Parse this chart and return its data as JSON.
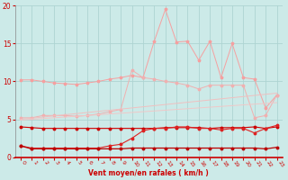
{
  "x": [
    0,
    1,
    2,
    3,
    4,
    5,
    6,
    7,
    8,
    9,
    10,
    11,
    12,
    13,
    14,
    15,
    16,
    17,
    18,
    19,
    20,
    21,
    22,
    23
  ],
  "line1_pink_spike": [
    10.2,
    10.2,
    10.0,
    9.8,
    9.7,
    9.6,
    9.8,
    10.0,
    10.3,
    10.5,
    10.8,
    10.5,
    15.3,
    19.5,
    15.2,
    15.3,
    12.8,
    15.3,
    10.5,
    15.0,
    10.5,
    10.3,
    6.5,
    8.2
  ],
  "line2_pink_curve": [
    5.2,
    5.2,
    5.5,
    5.5,
    5.5,
    5.4,
    5.5,
    5.7,
    6.0,
    6.3,
    11.5,
    10.5,
    10.3,
    10.0,
    9.8,
    9.5,
    9.0,
    9.5,
    9.5,
    9.5,
    9.5,
    5.2,
    5.5,
    8.2
  ],
  "line3_pink_linear_hi": [
    5.0,
    5.15,
    5.3,
    5.45,
    5.6,
    5.75,
    5.9,
    6.05,
    6.2,
    6.35,
    6.5,
    6.65,
    6.8,
    6.95,
    7.1,
    7.25,
    7.4,
    7.55,
    7.7,
    7.85,
    8.0,
    8.15,
    8.3,
    8.45
  ],
  "line4_pink_linear_lo": [
    4.9,
    5.0,
    5.1,
    5.2,
    5.3,
    5.4,
    5.5,
    5.6,
    5.7,
    5.8,
    5.9,
    6.0,
    6.1,
    6.2,
    6.3,
    6.4,
    6.5,
    6.6,
    6.7,
    6.8,
    6.9,
    7.0,
    7.1,
    7.2
  ],
  "line5_dark_red_flat": [
    4.0,
    3.9,
    3.8,
    3.8,
    3.8,
    3.8,
    3.8,
    3.8,
    3.8,
    3.8,
    3.8,
    3.8,
    3.8,
    3.9,
    3.9,
    3.9,
    3.9,
    3.8,
    3.9,
    3.9,
    3.9,
    4.0,
    3.8,
    4.0
  ],
  "line6_red_mid": [
    1.5,
    1.2,
    1.2,
    1.2,
    1.2,
    1.2,
    1.2,
    1.2,
    1.5,
    1.7,
    2.5,
    3.5,
    3.8,
    3.8,
    4.0,
    4.0,
    3.8,
    3.8,
    3.6,
    3.8,
    3.8,
    3.2,
    3.8,
    4.2
  ],
  "line7_red_low": [
    1.5,
    1.1,
    1.1,
    1.1,
    1.1,
    1.1,
    1.1,
    1.1,
    1.1,
    1.1,
    1.2,
    1.2,
    1.2,
    1.2,
    1.2,
    1.2,
    1.2,
    1.2,
    1.2,
    1.2,
    1.2,
    1.2,
    1.1,
    1.3
  ],
  "bg_color": "#cceae8",
  "grid_color": "#aed4d2",
  "pink_color1": "#f5a0a0",
  "pink_color2": "#f0b0b0",
  "pink_color3": "#f0c0c0",
  "pink_color4": "#f0c8c8",
  "red_color1": "#cc0000",
  "red_color2": "#dd2222",
  "red_color3": "#bb0000",
  "xlabel": "Vent moyen/en rafales ( km/h )",
  "xlim": [
    -0.5,
    23.5
  ],
  "ylim": [
    0,
    20
  ],
  "yticks": [
    0,
    5,
    10,
    15,
    20
  ],
  "xticks": [
    0,
    1,
    2,
    3,
    4,
    5,
    6,
    7,
    8,
    9,
    10,
    11,
    12,
    13,
    14,
    15,
    16,
    17,
    18,
    19,
    20,
    21,
    22,
    23
  ]
}
